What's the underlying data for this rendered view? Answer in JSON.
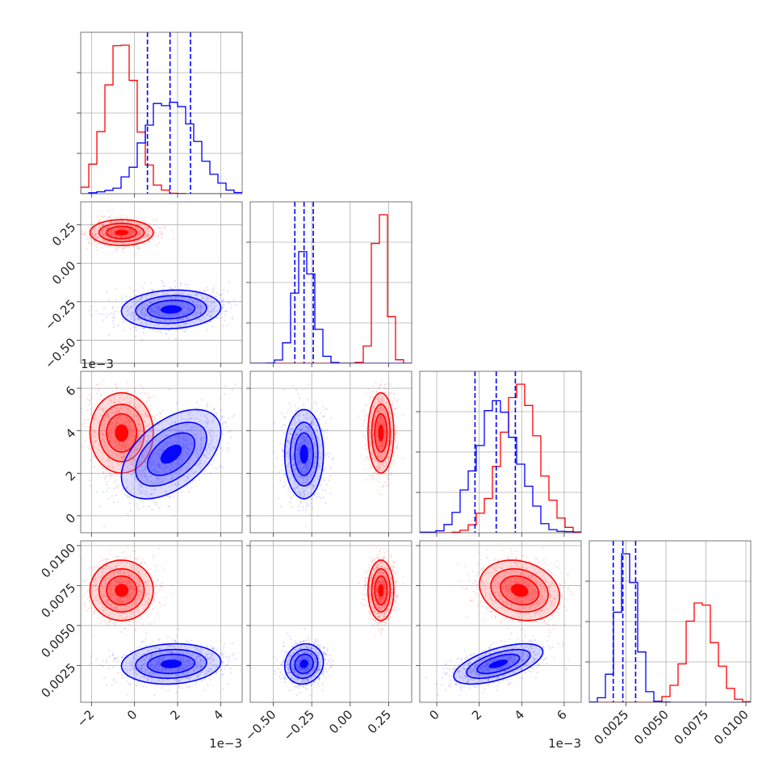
{
  "chart_data": {
    "type": "corner",
    "colors": {
      "series_a": "#ff0000",
      "series_b": "#0000ff"
    },
    "grid": true,
    "parameters": [
      {
        "range": [
          -0.0025,
          0.005
        ],
        "ticks": [
          -2,
          0,
          2,
          4
        ],
        "tick_labels": [
          "−2",
          "0",
          "2",
          "4"
        ],
        "offset_text": "1e−3"
      },
      {
        "range": [
          -0.65,
          0.4
        ],
        "ticks": [
          -0.5,
          -0.25,
          0.0,
          0.25
        ],
        "tick_labels": [
          "−0.50",
          "−0.25",
          "0.00",
          "0.25"
        ]
      },
      {
        "range": [
          -0.0008,
          0.0068
        ],
        "ticks": [
          0,
          2,
          4,
          6
        ],
        "tick_labels": [
          "0",
          "2",
          "4",
          "6"
        ],
        "offset_text": "1e−3"
      },
      {
        "range": [
          0.0002,
          0.0103
        ],
        "ticks": [
          0.0025,
          0.005,
          0.0075,
          0.01
        ],
        "tick_labels": [
          "0.0025",
          "0.0050",
          "0.0075",
          "0.0100"
        ]
      }
    ],
    "series": [
      {
        "color": "#ff0000",
        "mean": [
          -0.0006,
          0.2,
          0.0039,
          0.0072
        ],
        "std": [
          0.0007,
          0.04,
          0.0009,
          0.0009
        ],
        "corr": [
          [
            1,
            0,
            0,
            0
          ],
          [
            0,
            1,
            0,
            0
          ],
          [
            0,
            0,
            1,
            -0.2
          ],
          [
            0,
            0,
            -0.2,
            1
          ]
        ]
      },
      {
        "color": "#0000ff",
        "mean": [
          0.0017,
          -0.3,
          0.0029,
          0.0026
        ],
        "std": [
          0.0011,
          0.06,
          0.001,
          0.0006
        ],
        "corr": [
          [
            1,
            0.1,
            0.5,
            0.1
          ],
          [
            0.1,
            1,
            0,
            0.1
          ],
          [
            0.5,
            0,
            1,
            0.6
          ],
          [
            0.1,
            0.1,
            0.6,
            1
          ]
        ]
      }
    ],
    "quantile_lines": [
      [
        0.0006,
        0.00165,
        0.0026
      ],
      [
        -0.36,
        -0.3,
        -0.24
      ],
      [
        0.0018,
        0.0028,
        0.0037
      ],
      [
        0.0017,
        0.0023,
        0.0031
      ]
    ]
  }
}
